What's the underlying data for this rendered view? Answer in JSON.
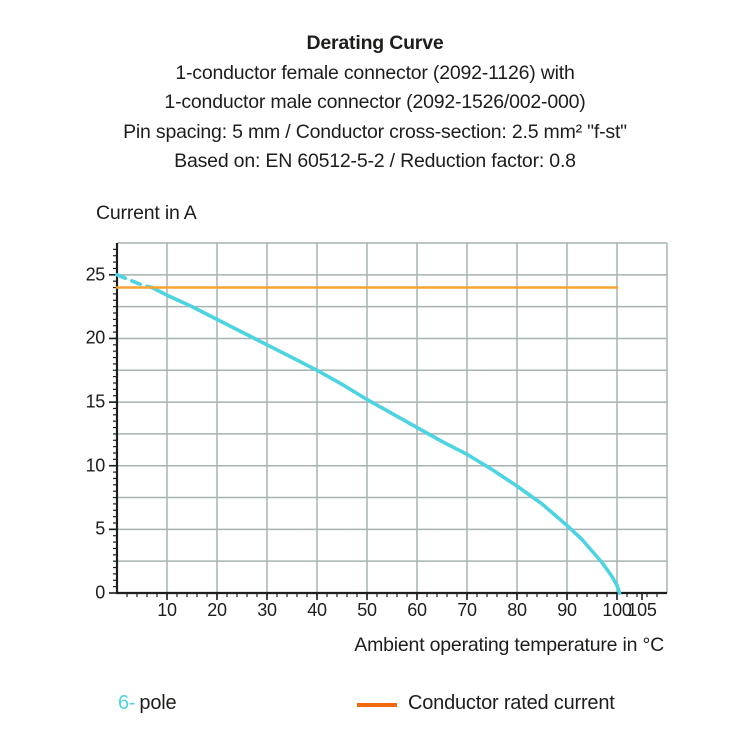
{
  "header": {
    "title": "Derating Curve",
    "subtitle_lines": [
      "1-conductor female connector (2092-1126) with",
      "1-conductor male connector (2092-1526/002-000)",
      "Pin spacing: 5 mm / Conductor cross-section: 2.5 mm² \"f-st\"",
      "Based on: EN 60512-5-2 / Reduction factor: 0.8"
    ]
  },
  "chart_data": {
    "type": "line",
    "title": "Derating Curve",
    "xlabel": "Ambient operating temperature in °C",
    "ylabel": "Current in A",
    "xlim": [
      0,
      110
    ],
    "ylim": [
      0,
      27.5
    ],
    "grid": true,
    "x_gridline_step": 10,
    "y_gridline_step": 2.5,
    "x_minor_tick_step": 2,
    "y_minor_tick_step": 0.5,
    "x_tick_labels": [
      10,
      20,
      30,
      40,
      50,
      60,
      70,
      80,
      90,
      100,
      105
    ],
    "y_tick_labels": [
      0,
      5,
      10,
      15,
      20,
      25
    ],
    "colors": {
      "gridline": "#a6b3b1",
      "axis": "#1d1d1b",
      "curve_6pole": "#4ed3e2",
      "rated_current_line": "#f7a233"
    },
    "series": [
      {
        "name": "6-pole derating curve",
        "color": "#4ed3e2",
        "style": "dashed-then-solid",
        "dash_until_x": 7,
        "points": [
          [
            0,
            25
          ],
          [
            2.5,
            24.6
          ],
          [
            5,
            24.2
          ],
          [
            7,
            24
          ],
          [
            10,
            23.4
          ],
          [
            15,
            22.5
          ],
          [
            20,
            21.5
          ],
          [
            25,
            20.5
          ],
          [
            30,
            19.5
          ],
          [
            35,
            18.5
          ],
          [
            40,
            17.5
          ],
          [
            45,
            16.4
          ],
          [
            50,
            15.2
          ],
          [
            55,
            14.1
          ],
          [
            60,
            13.0
          ],
          [
            65,
            11.9
          ],
          [
            70,
            10.9
          ],
          [
            75,
            9.7
          ],
          [
            80,
            8.4
          ],
          [
            85,
            7.0
          ],
          [
            90,
            5.3
          ],
          [
            93,
            4.2
          ],
          [
            95,
            3.3
          ],
          [
            97,
            2.4
          ],
          [
            99,
            1.3
          ],
          [
            100,
            0.6
          ],
          [
            100.5,
            0
          ]
        ]
      },
      {
        "name": "Conductor rated current",
        "color": "#f7a233",
        "style": "solid",
        "points": [
          [
            0,
            24
          ],
          [
            100,
            24
          ]
        ]
      }
    ],
    "legend_position": "bottom"
  },
  "legend": {
    "pole_number": "6-",
    "pole_label": "pole",
    "pole_color": "#4ed3e2",
    "rated_swatch_color": "#f2690d",
    "rated_label": "Conductor rated current"
  }
}
